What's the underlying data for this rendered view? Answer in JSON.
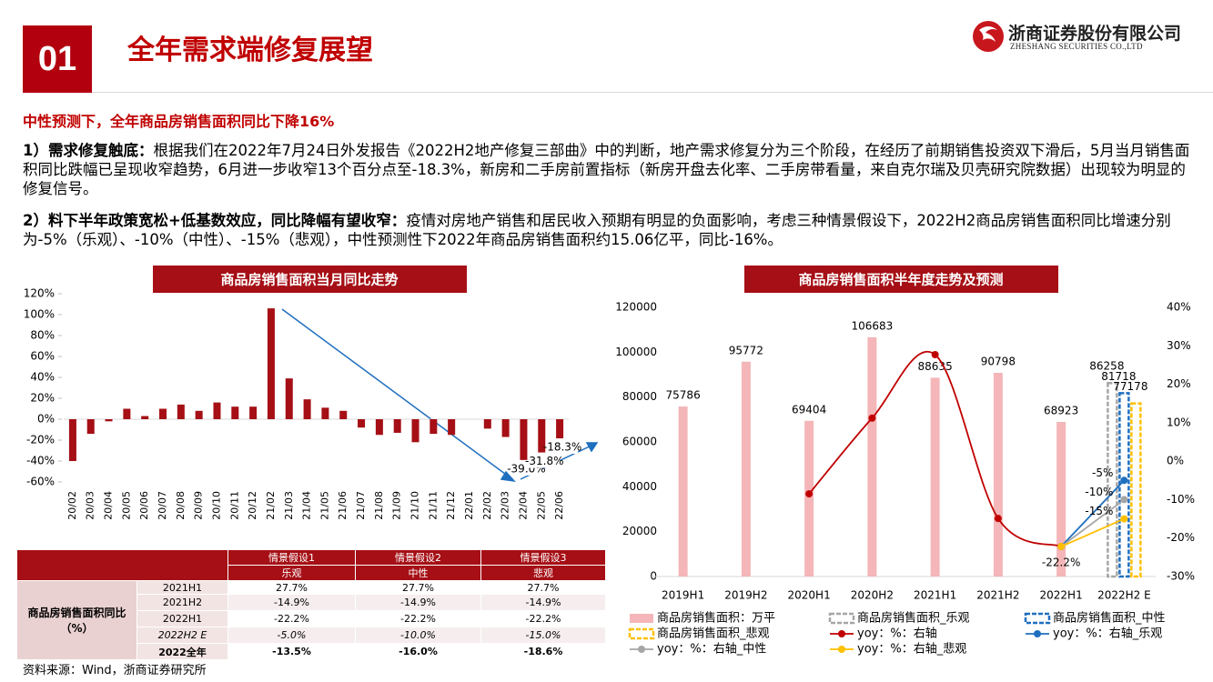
{
  "header": {
    "number": "01",
    "title": "全年需求端修复展望",
    "logo_cn": "浙商证券股份有限公司",
    "logo_en": "ZHESHANG SECURITIES CO.,LTD"
  },
  "subtitle": "中性预测下，全年商品房销售面积同比下降16%",
  "paragraphs": [
    {
      "lead": "1）需求修复触底：",
      "text": "根据我们在2022年7月24日外发报告《2022H2地产修复三部曲》中的判断，地产需求修复分为三个阶段，在经历了前期销售投资双下滑后，5月当月销售面积同比跌幅已呈现收窄趋势，6月进一步收窄13个百分点至-18.3%，新房和二手房前置指标（新房开盘去化率、二手房带看量，来自克尔瑞及贝壳研究院数据）出现较为明显的修复信号。"
    },
    {
      "lead": "2）料下半年政策宽松+低基数效应，同比降幅有望收窄：",
      "text": "疫情对房地产销售和居民收入预期有明显的负面影响，考虑三种情景假设下，2022H2商品房销售面积同比增速分别为-5%（乐观）、-10%（中性）、-15%（悲观），中性预测性下2022年商品房销售面积约15.06亿平，同比-16%。"
    }
  ],
  "chart_data": [
    {
      "type": "bar",
      "title": "商品房销售面积当月同比走势",
      "color": "#a50f15",
      "categories": [
        "20/02",
        "20/03",
        "20/04",
        "20/05",
        "20/06",
        "20/07",
        "20/08",
        "20/09",
        "20/10",
        "20/11",
        "20/12",
        "21/02",
        "21/03",
        "21/04",
        "21/05",
        "21/06",
        "21/07",
        "21/08",
        "21/09",
        "21/10",
        "21/11",
        "21/12",
        "22/01",
        "22/02",
        "22/03",
        "22/04",
        "22/05",
        "22/06"
      ],
      "values": [
        -40,
        -14,
        -2,
        10,
        3,
        10,
        14,
        8,
        16,
        12,
        12,
        106,
        39,
        19,
        11,
        8,
        -8,
        -15,
        -13,
        -22,
        -14,
        -15,
        null,
        -9,
        -17,
        -39.0,
        -31.8,
        -18.3
      ],
      "value_labels": [
        null,
        null,
        null,
        null,
        null,
        null,
        null,
        null,
        null,
        null,
        null,
        null,
        null,
        null,
        null,
        null,
        null,
        null,
        null,
        null,
        null,
        null,
        null,
        null,
        null,
        "-39.0%",
        "-31.8%",
        "-18.3%"
      ],
      "ylim": [
        -60,
        120
      ],
      "yticks": [
        {
          "value": -60,
          "label": "-60%"
        },
        {
          "value": -40,
          "label": "-40%"
        },
        {
          "value": -20,
          "label": "-20%"
        },
        {
          "value": 0,
          "label": "0%"
        },
        {
          "value": 20,
          "label": "20%"
        },
        {
          "value": 40,
          "label": "40%"
        },
        {
          "value": 60,
          "label": "60%"
        },
        {
          "value": 80,
          "label": "80%"
        },
        {
          "value": 100,
          "label": "100%"
        },
        {
          "value": 120,
          "label": "120%"
        }
      ]
    },
    {
      "type": "combo",
      "title": "商品房销售面积半年度走势及预测",
      "data_labels": true,
      "categories": [
        "2019H1",
        "2019H2",
        "2020H1",
        "2020H2",
        "2021H1",
        "2021H2",
        "2022H1",
        "2022H2 E"
      ],
      "ylim": [
        0,
        120000
      ],
      "yticks": [
        0,
        20000,
        40000,
        60000,
        80000,
        100000,
        120000
      ],
      "y2lim": [
        -30,
        40
      ],
      "y2ticks": [
        {
          "value": -30,
          "label": "-30%"
        },
        {
          "value": -20,
          "label": "-20%"
        },
        {
          "value": -10,
          "label": "-10%"
        },
        {
          "value": 0,
          "label": "0%"
        },
        {
          "value": 10,
          "label": "10%"
        },
        {
          "value": 20,
          "label": "20%"
        },
        {
          "value": 30,
          "label": "30%"
        },
        {
          "value": 40,
          "label": "40%"
        }
      ],
      "series": [
        {
          "name": "商品房销售面积：万平",
          "type": "bar",
          "color": "#f4b6b8",
          "values": [
            75786,
            95772,
            69404,
            106683,
            88635,
            90798,
            68923,
            null
          ]
        },
        {
          "name": "商品房销售面积_乐观",
          "type": "bar",
          "dashed": true,
          "color": "#a6a6a6",
          "values": [
            null,
            null,
            null,
            null,
            null,
            null,
            null,
            86258
          ]
        },
        {
          "name": "商品房销售面积_中性",
          "type": "bar",
          "dashed": true,
          "color": "#1f6fbf",
          "values": [
            null,
            null,
            null,
            null,
            null,
            null,
            null,
            81718
          ]
        },
        {
          "name": "商品房销售面积_悲观",
          "type": "bar",
          "dashed": true,
          "color": "#ffc000",
          "values": [
            null,
            null,
            null,
            null,
            null,
            null,
            null,
            77178
          ]
        },
        {
          "name": "yoy：%：右轴",
          "type": "line",
          "smooth": true,
          "axis": "y2",
          "color": "#c00000",
          "values": [
            null,
            null,
            -8.5,
            11.2,
            27.7,
            -14.9,
            -22.2,
            null
          ],
          "value_labels": [
            null,
            null,
            null,
            null,
            null,
            null,
            "-22.2%",
            null
          ]
        },
        {
          "name": "yoy：%：右轴_乐观",
          "type": "line",
          "axis": "y2",
          "color": "#1f6fbf",
          "values": [
            null,
            null,
            null,
            null,
            null,
            null,
            -22.2,
            -5
          ],
          "value_labels": [
            null,
            null,
            null,
            null,
            null,
            null,
            null,
            "-5%"
          ]
        },
        {
          "name": "yoy：%：右轴_中性",
          "type": "line",
          "axis": "y2",
          "color": "#a6a6a6",
          "values": [
            null,
            null,
            null,
            null,
            null,
            null,
            -22.2,
            -10
          ],
          "value_labels": [
            null,
            null,
            null,
            null,
            null,
            null,
            null,
            "-10%"
          ]
        },
        {
          "name": "yoy：%：右轴_悲观",
          "type": "line",
          "axis": "y2",
          "color": "#ffc000",
          "values": [
            null,
            null,
            null,
            null,
            null,
            null,
            -22.2,
            -15
          ],
          "value_labels": [
            null,
            null,
            null,
            null,
            null,
            null,
            null,
            "-15%"
          ]
        }
      ]
    }
  ],
  "table": {
    "header": [
      "情景假设1",
      "情景假设2",
      "情景假设3"
    ],
    "subheader": [
      "乐观",
      "中性",
      "悲观"
    ],
    "row_label": "商品房销售面积同比（%）",
    "rows": [
      [
        "2021H1",
        "27.7%",
        "27.7%",
        "27.7%"
      ],
      [
        "2021H2",
        "-14.9%",
        "-14.9%",
        "-14.9%"
      ],
      [
        "2022H1",
        "-22.2%",
        "-22.2%",
        "-22.2%"
      ],
      [
        "2022H2 E",
        "-5.0%",
        "-10.0%",
        "-15.0%"
      ],
      [
        "2022全年",
        "-13.5%",
        "-16.0%",
        "-18.6%"
      ]
    ]
  },
  "source": "资料来源：Wind，浙商证券研究所"
}
